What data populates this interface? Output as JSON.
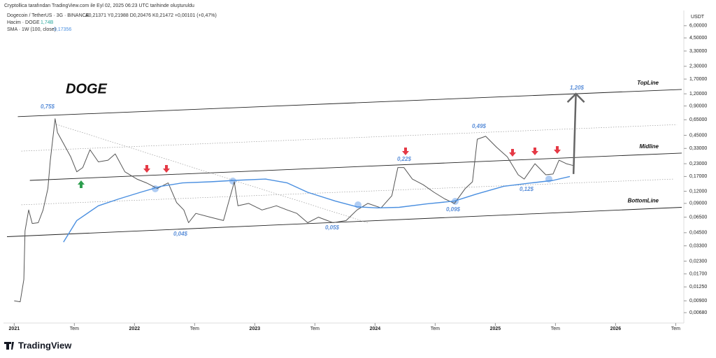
{
  "chart_data": {
    "type": "line",
    "title": "DOGE",
    "caption": "Cryptollica tarafından TradingView.com ile Eyl 02, 2025 06:23 UTC tarihinde oluşturuldu",
    "ohlc": "A0,21371  Y0,21988  D0,20476  K0,21472  +0,00101 (+0,47%)",
    "volume_label": "Hacim · DOGE",
    "volume_value": "1,74B",
    "sma_value": "0,17356",
    "currency": "USDT",
    "brand": "TradingView",
    "log_scale": true,
    "xlim": [
      2020.94,
      2026.55
    ],
    "ylim": [
      0.0055,
      8.6
    ],
    "xticks": [
      2021,
      {
        "value": 2021.5,
        "label": "Tem"
      },
      2022,
      {
        "value": 2022.5,
        "label": "Tem"
      },
      2023,
      {
        "value": 2023.5,
        "label": "Tem"
      },
      2024,
      {
        "value": 2024.5,
        "label": "Tem"
      },
      2025,
      {
        "value": 2025.5,
        "label": "Tem"
      },
      2026,
      {
        "value": 2026.5,
        "label": "Tem"
      }
    ],
    "yticks": [
      {
        "value": 6,
        "label": "6,00000"
      },
      {
        "value": 4.5,
        "label": "4,50000"
      },
      {
        "value": 3.3,
        "label": "3,30000"
      },
      {
        "value": 2.3,
        "label": "2,30000"
      },
      {
        "value": 1.7,
        "label": "1,70000"
      },
      {
        "value": 1.2,
        "label": "1,20000"
      },
      {
        "value": 0.9,
        "label": "0,90000"
      },
      {
        "value": 0.65,
        "label": "0,65000"
      },
      {
        "value": 0.45,
        "label": "0,45000"
      },
      {
        "value": 0.33,
        "label": "0,33000"
      },
      {
        "value": 0.23,
        "label": "0,23000"
      },
      {
        "value": 0.17,
        "label": "0,17000"
      },
      {
        "value": 0.12,
        "label": "0,12000"
      },
      {
        "value": 0.09,
        "label": "0,09000"
      },
      {
        "value": 0.065,
        "label": "0,06500"
      },
      {
        "value": 0.045,
        "label": "0,04500"
      },
      {
        "value": 0.033,
        "label": "0,03300"
      },
      {
        "value": 0.023,
        "label": "0,02300"
      },
      {
        "value": 0.017,
        "label": "0,01700"
      },
      {
        "value": 0.0125,
        "label": "0,01250"
      },
      {
        "value": 0.009,
        "label": "0,00900"
      },
      {
        "value": 0.0068,
        "label": "0,00680"
      }
    ],
    "series": [
      {
        "name": "Dogecoin / TetherUS · 3G · BINANCE",
        "color": "#555555",
        "x": [
          2021.0,
          2021.05,
          2021.08,
          2021.09,
          2021.12,
          2021.15,
          2021.2,
          2021.24,
          2021.28,
          2021.3,
          2021.34,
          2021.36,
          2021.41,
          2021.47,
          2021.52,
          2021.57,
          2021.63,
          2021.7,
          2021.78,
          2021.84,
          2021.92,
          2022.02,
          2022.1,
          2022.19,
          2022.28,
          2022.35,
          2022.41,
          2022.45,
          2022.51,
          2022.63,
          2022.74,
          2022.83,
          2022.86,
          2022.95,
          2023.06,
          2023.18,
          2023.27,
          2023.35,
          2023.44,
          2023.53,
          2023.65,
          2023.76,
          2023.85,
          2023.94,
          2024.05,
          2024.14,
          2024.19,
          2024.24,
          2024.31,
          2024.4,
          2024.49,
          2024.58,
          2024.66,
          2024.75,
          2024.81,
          2024.85,
          2024.92,
          2025.01,
          2025.1,
          2025.19,
          2025.24,
          2025.33,
          2025.42,
          2025.48,
          2025.53,
          2025.59,
          2025.65
        ],
        "values": [
          0.009,
          0.0088,
          0.0149,
          0.047,
          0.077,
          0.056,
          0.057,
          0.077,
          0.128,
          0.247,
          0.666,
          0.48,
          0.37,
          0.27,
          0.19,
          0.21,
          0.32,
          0.24,
          0.25,
          0.29,
          0.19,
          0.16,
          0.146,
          0.128,
          0.146,
          0.092,
          0.077,
          0.057,
          0.071,
          0.065,
          0.06,
          0.15,
          0.085,
          0.09,
          0.077,
          0.085,
          0.077,
          0.071,
          0.057,
          0.065,
          0.057,
          0.06,
          0.077,
          0.09,
          0.081,
          0.108,
          0.21,
          0.21,
          0.16,
          0.14,
          0.117,
          0.1,
          0.09,
          0.128,
          0.15,
          0.41,
          0.44,
          0.34,
          0.27,
          0.177,
          0.16,
          0.23,
          0.177,
          0.18,
          0.25,
          0.23,
          0.22
        ]
      },
      {
        "name": "SMA · 1W (100, close)",
        "color": "#4a8fe0",
        "x": [
          2021.41,
          2021.52,
          2021.7,
          2021.87,
          2022.05,
          2022.22,
          2022.4,
          2022.63,
          2022.83,
          2023.09,
          2023.27,
          2023.44,
          2023.67,
          2023.85,
          2024.02,
          2024.2,
          2024.43,
          2024.66,
          2024.84,
          2025.07,
          2025.3,
          2025.48,
          2025.62
        ],
        "values": [
          0.036,
          0.06,
          0.085,
          0.1,
          0.117,
          0.135,
          0.146,
          0.15,
          0.155,
          0.16,
          0.146,
          0.117,
          0.095,
          0.083,
          0.081,
          0.082,
          0.089,
          0.095,
          0.112,
          0.135,
          0.146,
          0.155,
          0.17
        ]
      }
    ],
    "lines": [
      {
        "name": "TopLine",
        "x": [
          2021.03,
          2026.55
        ],
        "values": [
          0.7,
          1.33
        ],
        "style": "solid"
      },
      {
        "name": "Midline",
        "x": [
          2021.13,
          2026.55
        ],
        "values": [
          0.155,
          0.296
        ],
        "style": "solid"
      },
      {
        "name": "BottomLine",
        "x": [
          2020.94,
          2026.55
        ],
        "values": [
          0.041,
          0.082
        ],
        "style": "solid"
      },
      {
        "x": [
          2021.06,
          2026.51
        ],
        "values": [
          0.31,
          0.58
        ],
        "style": "dotted"
      },
      {
        "x": [
          2021.06,
          2026.48
        ],
        "values": [
          0.087,
          0.16
        ],
        "style": "dotted"
      },
      {
        "x": [
          2021.35,
          2023.94
        ],
        "values": [
          0.583,
          0.057
        ],
        "style": "dotted"
      }
    ],
    "arrow": {
      "x": [
        2025.65,
        2025.67
      ],
      "values": [
        0.18,
        1.2
      ]
    },
    "price_labels": [
      "0,75$",
      "0,04$",
      "0,05$",
      "0,22$",
      "0,09$",
      "0,49$",
      "0,12$",
      "1,20$"
    ]
  }
}
